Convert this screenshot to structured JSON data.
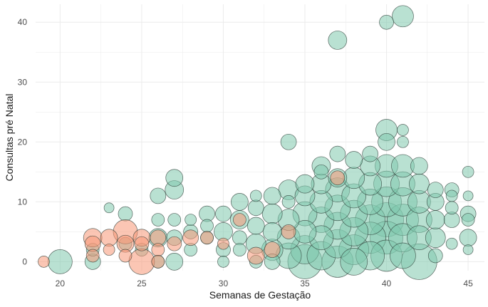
{
  "chart_data": {
    "type": "scatter",
    "xlabel": "Semanas de Gestação",
    "ylabel": "Consultas pré Natal",
    "xlim": [
      18.5,
      46
    ],
    "ylim": [
      -1.5,
      43
    ],
    "x_ticks": [
      20,
      25,
      30,
      35,
      40,
      45
    ],
    "y_ticks": [
      0,
      10,
      20,
      30,
      40
    ],
    "grid": true,
    "legend": "none",
    "colors": {
      "group_a": "#7fc9ad",
      "group_b": "#f79877",
      "outline": "#2a3a33",
      "grid": "#ebebeb"
    },
    "series": [
      {
        "group": "group_a",
        "points": [
          [
            20,
            0,
            17
          ],
          [
            22,
            2,
            9
          ],
          [
            22,
            0,
            11
          ],
          [
            23,
            9,
            7
          ],
          [
            24,
            3,
            9
          ],
          [
            24,
            8,
            10
          ],
          [
            25,
            2,
            9
          ],
          [
            26,
            11,
            11
          ],
          [
            26,
            4,
            13
          ],
          [
            26,
            7,
            9
          ],
          [
            26,
            0,
            9
          ],
          [
            27,
            12,
            13
          ],
          [
            27,
            14,
            12
          ],
          [
            27,
            7,
            9
          ],
          [
            27,
            4,
            11
          ],
          [
            27,
            0,
            12
          ],
          [
            28,
            5,
            10
          ],
          [
            28,
            7,
            8
          ],
          [
            28,
            2,
            9
          ],
          [
            29,
            4,
            9
          ],
          [
            29,
            8,
            11
          ],
          [
            29,
            6,
            9
          ],
          [
            30,
            8,
            11
          ],
          [
            30,
            5,
            13
          ],
          [
            30,
            2,
            10
          ],
          [
            30,
            0,
            8
          ],
          [
            31,
            7,
            13
          ],
          [
            31,
            4,
            10
          ],
          [
            31,
            10,
            12
          ],
          [
            31,
            2,
            9
          ],
          [
            32,
            9,
            11
          ],
          [
            32,
            6,
            12
          ],
          [
            32,
            3,
            14
          ],
          [
            32,
            0,
            9
          ],
          [
            32,
            11,
            8
          ],
          [
            33,
            11,
            12
          ],
          [
            33,
            8,
            14
          ],
          [
            33,
            5,
            13
          ],
          [
            33,
            2,
            15
          ],
          [
            33,
            0,
            11
          ],
          [
            34,
            12,
            14
          ],
          [
            34,
            10,
            9
          ],
          [
            34,
            7,
            15
          ],
          [
            34,
            4,
            16
          ],
          [
            34,
            1,
            18
          ],
          [
            34,
            20,
            11
          ],
          [
            35,
            13,
            13
          ],
          [
            35,
            11,
            14
          ],
          [
            35,
            8,
            17
          ],
          [
            35,
            5,
            16
          ],
          [
            35,
            2,
            20
          ],
          [
            35,
            0,
            24
          ],
          [
            36,
            16,
            13
          ],
          [
            36,
            13,
            14
          ],
          [
            36,
            10,
            16
          ],
          [
            36,
            7,
            18
          ],
          [
            36,
            4,
            17
          ],
          [
            36,
            1,
            20
          ],
          [
            36,
            15,
            10
          ],
          [
            37,
            18,
            11
          ],
          [
            37,
            37,
            13
          ],
          [
            37,
            14,
            13
          ],
          [
            37,
            12,
            17
          ],
          [
            37,
            9,
            18
          ],
          [
            37,
            6,
            19
          ],
          [
            37,
            3,
            20
          ],
          [
            37,
            0,
            22
          ],
          [
            38,
            17,
            12
          ],
          [
            38,
            14,
            15
          ],
          [
            38,
            11,
            17
          ],
          [
            38,
            8,
            19
          ],
          [
            38,
            5,
            20
          ],
          [
            38,
            2,
            21
          ],
          [
            38,
            0,
            19
          ],
          [
            39,
            18,
            11
          ],
          [
            39,
            16,
            14
          ],
          [
            39,
            13,
            16
          ],
          [
            39,
            10,
            18
          ],
          [
            39,
            7,
            21
          ],
          [
            39,
            4,
            22
          ],
          [
            39,
            1,
            20
          ],
          [
            40,
            22,
            15
          ],
          [
            40,
            40,
            10
          ],
          [
            40,
            20,
            12
          ],
          [
            40,
            16,
            16
          ],
          [
            40,
            13,
            18
          ],
          [
            40,
            10,
            21
          ],
          [
            40,
            7,
            24
          ],
          [
            40,
            4,
            23
          ],
          [
            40,
            1,
            22
          ],
          [
            41,
            41,
            15
          ],
          [
            41,
            22,
            8
          ],
          [
            41,
            20,
            8
          ],
          [
            41,
            16,
            16
          ],
          [
            41,
            13,
            17
          ],
          [
            41,
            10,
            20
          ],
          [
            41,
            7,
            22
          ],
          [
            41,
            4,
            20
          ],
          [
            41,
            1,
            18
          ],
          [
            42,
            16,
            12
          ],
          [
            42,
            13,
            14
          ],
          [
            42,
            10,
            16
          ],
          [
            42,
            7,
            18
          ],
          [
            42,
            4,
            17
          ],
          [
            42,
            0,
            25
          ],
          [
            43,
            12,
            11
          ],
          [
            43,
            10,
            12
          ],
          [
            43,
            7,
            13
          ],
          [
            43,
            4,
            14
          ],
          [
            43,
            1,
            10
          ],
          [
            44,
            12,
            10
          ],
          [
            44,
            9,
            9
          ],
          [
            44,
            7,
            11
          ],
          [
            44,
            3,
            8
          ],
          [
            44,
            11,
            8
          ],
          [
            45,
            15,
            8
          ],
          [
            45,
            11,
            7
          ],
          [
            45,
            8,
            11
          ],
          [
            45,
            4,
            12
          ],
          [
            45,
            2,
            7
          ],
          [
            45,
            7,
            9
          ]
        ]
      },
      {
        "group": "group_b",
        "points": [
          [
            19,
            0,
            8
          ],
          [
            22,
            4,
            13
          ],
          [
            22,
            3,
            11
          ],
          [
            22,
            1,
            9
          ],
          [
            23,
            4,
            12
          ],
          [
            23,
            2,
            8
          ],
          [
            24,
            5,
            17
          ],
          [
            24,
            3,
            12
          ],
          [
            24,
            1,
            9
          ],
          [
            25,
            0,
            18
          ],
          [
            25,
            4,
            12
          ],
          [
            25,
            3,
            10
          ],
          [
            26,
            4,
            11
          ],
          [
            26,
            2,
            9
          ],
          [
            26,
            0,
            9
          ],
          [
            27,
            3,
            10
          ],
          [
            28,
            4,
            11
          ],
          [
            29,
            4,
            9
          ],
          [
            30,
            3,
            8
          ],
          [
            31,
            7,
            9
          ],
          [
            32,
            1,
            12
          ],
          [
            33,
            2,
            11
          ],
          [
            34,
            5,
            10
          ],
          [
            37,
            14,
            10
          ]
        ]
      }
    ]
  }
}
